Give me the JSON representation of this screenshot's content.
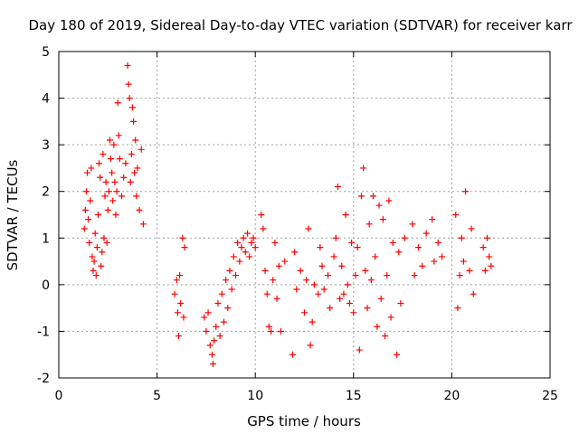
{
  "chart_data": {
    "type": "scatter",
    "title": "Day 180 of 2019, Sidereal Day-to-day VTEC variation (SDTVAR) for receiver karr",
    "xlabel": "GPS time / hours",
    "ylabel": "SDTVAR / TECUs",
    "xlim": [
      0,
      25
    ],
    "ylim": [
      -2,
      5
    ],
    "xticks": [
      "0",
      "5",
      "10",
      "15",
      "20",
      "25"
    ],
    "yticks": [
      "-2",
      "-1",
      "0",
      "1",
      "2",
      "3",
      "4",
      "5"
    ],
    "grid": true,
    "marker": "plus",
    "series_color": "#ff0000",
    "series": [
      {
        "name": "SDTVAR",
        "points": [
          [
            1.3,
            1.2
          ],
          [
            1.35,
            1.6
          ],
          [
            1.4,
            2.0
          ],
          [
            1.45,
            2.4
          ],
          [
            1.5,
            1.4
          ],
          [
            1.55,
            0.9
          ],
          [
            1.6,
            1.8
          ],
          [
            1.65,
            2.5
          ],
          [
            1.7,
            0.6
          ],
          [
            1.75,
            0.3
          ],
          [
            1.8,
            0.5
          ],
          [
            1.85,
            1.1
          ],
          [
            1.9,
            0.2
          ],
          [
            1.95,
            0.8
          ],
          [
            2.0,
            1.5
          ],
          [
            2.05,
            2.6
          ],
          [
            2.1,
            2.3
          ],
          [
            2.15,
            0.4
          ],
          [
            2.2,
            0.7
          ],
          [
            2.25,
            2.8
          ],
          [
            2.3,
            1.0
          ],
          [
            2.35,
            1.9
          ],
          [
            2.4,
            2.2
          ],
          [
            2.45,
            0.9
          ],
          [
            2.5,
            1.6
          ],
          [
            2.55,
            2.0
          ],
          [
            2.6,
            3.1
          ],
          [
            2.65,
            2.7
          ],
          [
            2.7,
            2.4
          ],
          [
            2.75,
            1.8
          ],
          [
            2.8,
            3.0
          ],
          [
            2.85,
            2.2
          ],
          [
            2.9,
            1.5
          ],
          [
            2.95,
            2.0
          ],
          [
            3.0,
            3.9
          ],
          [
            3.05,
            3.2
          ],
          [
            3.1,
            2.7
          ],
          [
            3.2,
            1.9
          ],
          [
            3.3,
            2.3
          ],
          [
            3.4,
            2.6
          ],
          [
            3.5,
            4.7
          ],
          [
            3.55,
            4.3
          ],
          [
            3.6,
            4.0
          ],
          [
            3.65,
            2.2
          ],
          [
            3.7,
            2.8
          ],
          [
            3.75,
            3.8
          ],
          [
            3.8,
            3.5
          ],
          [
            3.85,
            2.4
          ],
          [
            3.9,
            3.1
          ],
          [
            3.95,
            1.9
          ],
          [
            4.0,
            2.5
          ],
          [
            4.1,
            1.6
          ],
          [
            4.2,
            2.9
          ],
          [
            4.3,
            1.3
          ],
          [
            5.9,
            -0.2
          ],
          [
            6.0,
            0.1
          ],
          [
            6.05,
            -0.6
          ],
          [
            6.1,
            -1.1
          ],
          [
            6.15,
            0.2
          ],
          [
            6.2,
            -0.4
          ],
          [
            6.3,
            1.0
          ],
          [
            6.35,
            -0.7
          ],
          [
            6.4,
            0.8
          ],
          [
            7.4,
            -0.7
          ],
          [
            7.5,
            -1.0
          ],
          [
            7.6,
            -0.6
          ],
          [
            7.7,
            -1.3
          ],
          [
            7.8,
            -1.5
          ],
          [
            7.85,
            -1.7
          ],
          [
            7.9,
            -1.2
          ],
          [
            8.0,
            -0.9
          ],
          [
            8.1,
            -0.4
          ],
          [
            8.2,
            -1.1
          ],
          [
            8.3,
            -0.2
          ],
          [
            8.4,
            -0.8
          ],
          [
            8.5,
            0.1
          ],
          [
            8.6,
            -0.5
          ],
          [
            8.7,
            0.3
          ],
          [
            8.8,
            -0.1
          ],
          [
            8.9,
            0.6
          ],
          [
            9.0,
            0.2
          ],
          [
            9.1,
            0.9
          ],
          [
            9.2,
            0.5
          ],
          [
            9.3,
            0.8
          ],
          [
            9.4,
            1.0
          ],
          [
            9.5,
            0.7
          ],
          [
            9.6,
            1.1
          ],
          [
            9.7,
            0.6
          ],
          [
            9.8,
            0.9
          ],
          [
            9.9,
            1.0
          ],
          [
            10.0,
            0.8
          ],
          [
            10.3,
            1.5
          ],
          [
            10.4,
            1.2
          ],
          [
            10.5,
            0.3
          ],
          [
            10.6,
            -0.2
          ],
          [
            10.7,
            -0.9
          ],
          [
            10.8,
            -1.0
          ],
          [
            10.9,
            0.1
          ],
          [
            11.0,
            0.9
          ],
          [
            11.1,
            -0.3
          ],
          [
            11.2,
            0.4
          ],
          [
            11.3,
            -1.0
          ],
          [
            11.5,
            0.5
          ],
          [
            11.9,
            -1.5
          ],
          [
            12.0,
            0.7
          ],
          [
            12.1,
            -0.1
          ],
          [
            12.3,
            0.3
          ],
          [
            12.5,
            -0.6
          ],
          [
            12.6,
            0.1
          ],
          [
            12.7,
            1.2
          ],
          [
            12.8,
            -1.3
          ],
          [
            12.9,
            -0.8
          ],
          [
            13.0,
            0.0
          ],
          [
            13.2,
            -0.2
          ],
          [
            13.3,
            0.8
          ],
          [
            13.4,
            0.4
          ],
          [
            13.5,
            -0.1
          ],
          [
            13.7,
            0.2
          ],
          [
            13.8,
            -0.5
          ],
          [
            14.0,
            0.6
          ],
          [
            14.1,
            1.0
          ],
          [
            14.2,
            2.1
          ],
          [
            14.3,
            -0.3
          ],
          [
            14.4,
            0.4
          ],
          [
            14.5,
            -0.2
          ],
          [
            14.6,
            1.5
          ],
          [
            14.7,
            0.0
          ],
          [
            14.8,
            -0.4
          ],
          [
            14.9,
            0.9
          ],
          [
            15.0,
            -0.6
          ],
          [
            15.1,
            0.2
          ],
          [
            15.2,
            0.8
          ],
          [
            15.3,
            -1.4
          ],
          [
            15.4,
            1.9
          ],
          [
            15.5,
            2.5
          ],
          [
            15.6,
            0.3
          ],
          [
            15.7,
            -0.5
          ],
          [
            15.8,
            1.3
          ],
          [
            15.9,
            0.1
          ],
          [
            16.0,
            1.9
          ],
          [
            16.1,
            0.6
          ],
          [
            16.2,
            -0.9
          ],
          [
            16.3,
            1.7
          ],
          [
            16.4,
            -0.3
          ],
          [
            16.5,
            1.4
          ],
          [
            16.6,
            -1.1
          ],
          [
            16.7,
            0.2
          ],
          [
            16.8,
            1.8
          ],
          [
            16.9,
            -0.7
          ],
          [
            17.0,
            0.9
          ],
          [
            17.2,
            -1.5
          ],
          [
            17.3,
            0.7
          ],
          [
            17.4,
            -0.4
          ],
          [
            17.6,
            1.0
          ],
          [
            18.0,
            1.3
          ],
          [
            18.1,
            0.2
          ],
          [
            18.3,
            0.8
          ],
          [
            18.5,
            0.4
          ],
          [
            18.7,
            1.1
          ],
          [
            19.0,
            1.4
          ],
          [
            19.1,
            0.5
          ],
          [
            19.3,
            0.9
          ],
          [
            19.5,
            0.6
          ],
          [
            20.2,
            1.5
          ],
          [
            20.3,
            -0.5
          ],
          [
            20.4,
            0.2
          ],
          [
            20.5,
            1.0
          ],
          [
            20.6,
            0.5
          ],
          [
            20.7,
            2.0
          ],
          [
            20.9,
            0.3
          ],
          [
            21.0,
            1.2
          ],
          [
            21.1,
            -0.2
          ],
          [
            21.6,
            0.8
          ],
          [
            21.7,
            0.3
          ],
          [
            21.8,
            1.0
          ],
          [
            21.9,
            0.6
          ],
          [
            22.0,
            0.4
          ]
        ]
      }
    ]
  }
}
